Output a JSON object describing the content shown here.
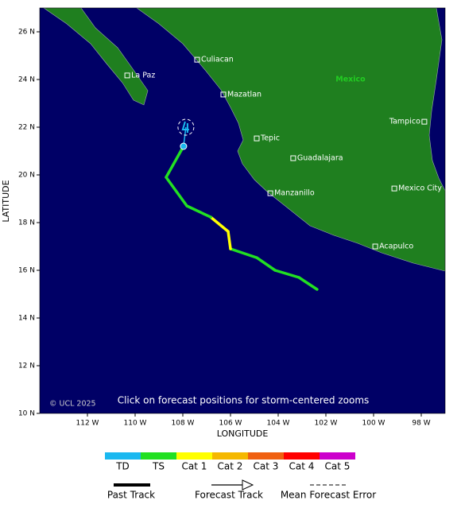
{
  "map": {
    "xlim": [
      -114,
      -97
    ],
    "ylim": [
      10,
      27
    ],
    "xticks": [
      {
        "value": -112,
        "label": "112 W"
      },
      {
        "value": -110,
        "label": "110 W"
      },
      {
        "value": -108,
        "label": "108 W"
      },
      {
        "value": -106,
        "label": "106 W"
      },
      {
        "value": -104,
        "label": "104 W"
      },
      {
        "value": -102,
        "label": "102 W"
      },
      {
        "value": -100,
        "label": "100 W"
      },
      {
        "value": -98,
        "label": "98 W"
      }
    ],
    "yticks": [
      {
        "value": 26,
        "label": "26 N"
      },
      {
        "value": 24,
        "label": "24 N"
      },
      {
        "value": 22,
        "label": "22 N"
      },
      {
        "value": 20,
        "label": "20 N"
      },
      {
        "value": 18,
        "label": "18 N"
      },
      {
        "value": 16,
        "label": "16 N"
      },
      {
        "value": 14,
        "label": "14 N"
      },
      {
        "value": 12,
        "label": "12 N"
      },
      {
        "value": 10,
        "label": "10 N"
      }
    ],
    "xlabel": "LONGITUDE",
    "ylabel": "LATITUDE",
    "country": "Mexico",
    "copyright": "© UCL 2025",
    "note": "Click on forecast positions for storm-centered zooms",
    "cities": [
      {
        "name": "Culiacan",
        "lon": -107.4,
        "lat": 24.83
      },
      {
        "name": "La Paz",
        "lon": -110.33,
        "lat": 24.17
      },
      {
        "name": "Mazatlan",
        "lon": -106.3,
        "lat": 23.37
      },
      {
        "name": "Tepic",
        "lon": -104.9,
        "lat": 21.53
      },
      {
        "name": "Guadalajara",
        "lon": -103.37,
        "lat": 20.7
      },
      {
        "name": "Manzanillo",
        "lon": -104.33,
        "lat": 19.23
      },
      {
        "name": "Tampico",
        "lon": -97.87,
        "lat": 22.23
      },
      {
        "name": "Mexico City",
        "lon": -99.13,
        "lat": 19.43
      },
      {
        "name": "Acapulco",
        "lon": -99.93,
        "lat": 17.0
      }
    ],
    "past_track": {
      "lon": [
        -102.37,
        -103.13,
        -104.13,
        -104.9,
        -106.0,
        -106.1,
        -106.83,
        -107.83,
        -108.7,
        -107.97
      ],
      "lat": [
        15.2,
        15.7,
        16.0,
        16.53,
        16.9,
        17.63,
        18.23,
        18.7,
        19.9,
        21.2
      ],
      "category": [
        "TS",
        "TS",
        "TS",
        "TS",
        "TS",
        "Cat 1",
        "Cat 1",
        "TS",
        "TS",
        "TS"
      ]
    },
    "forecast_track": {
      "lon": [
        -107.87
      ],
      "lat": [
        22.0
      ],
      "category": [
        "TD"
      ]
    }
  },
  "legend": {
    "categories": [
      {
        "label": "TD",
        "color": "#1ab8f0"
      },
      {
        "label": "TS",
        "color": "#22e022"
      },
      {
        "label": "Cat 1",
        "color": "#ffff00"
      },
      {
        "label": "Cat 2",
        "color": "#f5b800"
      },
      {
        "label": "Cat 3",
        "color": "#f06010"
      },
      {
        "label": "Cat 4",
        "color": "#ff0000"
      },
      {
        "label": "Cat 5",
        "color": "#cc00cc"
      }
    ],
    "past_track": "Past Track",
    "forecast_track": "Forecast Track",
    "error": "Mean Forecast Error"
  }
}
